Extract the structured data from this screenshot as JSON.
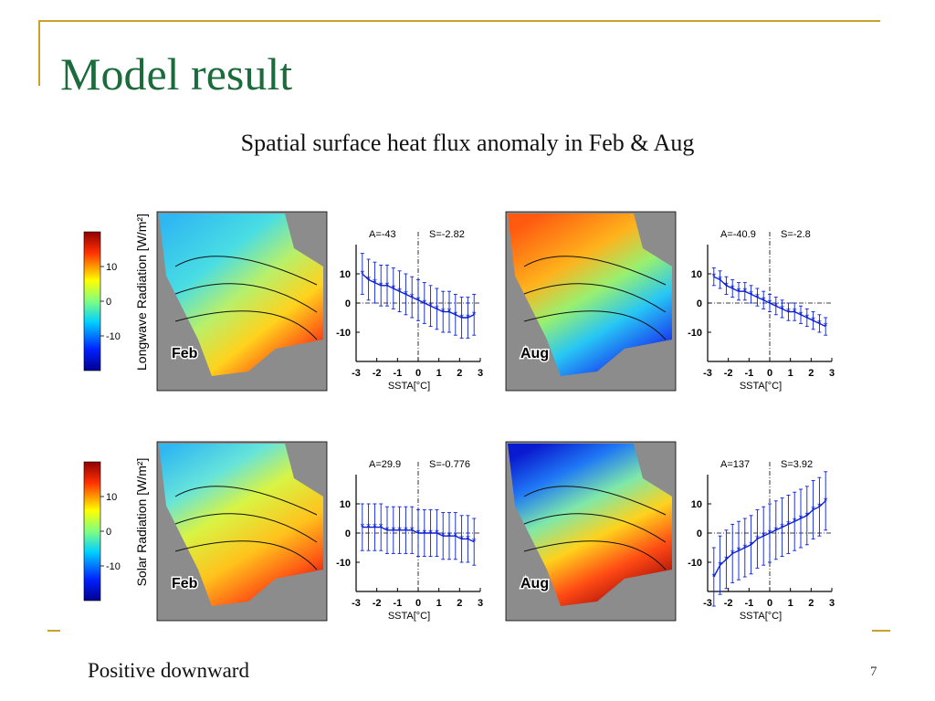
{
  "slide": {
    "title": "Model result",
    "subtitle": "Spatial surface heat flux anomaly in Feb & Aug",
    "footer_note": "Positive downward",
    "page_number": "7"
  },
  "colors": {
    "accent": "#c9a227",
    "title": "#1c6b3c",
    "plot_line": "#0a1fd6"
  },
  "rows": [
    {
      "ylabel": "Longwave Radiation [W/m²]",
      "colorbar_ticks": [
        "10",
        "0",
        "-10"
      ],
      "maps": [
        {
          "label": "Feb",
          "palette": "feb-lw"
        },
        {
          "label": "Aug",
          "palette": "aug-lw"
        }
      ]
    },
    {
      "ylabel": "Solar Radiation [W/m²]",
      "colorbar_ticks": [
        "10",
        "0",
        "-10"
      ],
      "maps": [
        {
          "label": "Feb",
          "palette": "feb-sw"
        },
        {
          "label": "Aug",
          "palette": "aug-sw"
        }
      ]
    }
  ],
  "chart_data": [
    {
      "type": "scatter",
      "row": 0,
      "col": 0,
      "A_label": "A=-43",
      "S_label": "S=-2.82",
      "xlabel": "SSTA[°C]",
      "xlim": [
        -3,
        3
      ],
      "ylim": [
        -20,
        20
      ],
      "xticks": [
        "-3",
        "-2",
        "-1",
        "0",
        "1",
        "2",
        "3"
      ],
      "yticks": [
        "10",
        "0",
        "-10"
      ],
      "x": [
        -2.7,
        -2.4,
        -2.1,
        -1.8,
        -1.5,
        -1.2,
        -0.9,
        -0.6,
        -0.3,
        0,
        0.3,
        0.6,
        0.9,
        1.2,
        1.5,
        1.8,
        2.1,
        2.4,
        2.7
      ],
      "y": [
        10,
        8,
        7,
        6,
        6,
        5,
        4,
        3,
        2,
        1,
        0,
        -1,
        -2,
        -3,
        -3,
        -4,
        -5,
        -5,
        -4
      ],
      "err": [
        7,
        7,
        7,
        7,
        7,
        7,
        7,
        7,
        7,
        7,
        7,
        7,
        7,
        7,
        7,
        7,
        7,
        7,
        7
      ]
    },
    {
      "type": "scatter",
      "row": 0,
      "col": 1,
      "A_label": "A=-40.9",
      "S_label": "S=-2.8",
      "xlabel": "SSTA[°C]",
      "xlim": [
        -3,
        3
      ],
      "ylim": [
        -20,
        20
      ],
      "xticks": [
        "-3",
        "-2",
        "-1",
        "0",
        "1",
        "2",
        "3"
      ],
      "yticks": [
        "10",
        "0",
        "-10"
      ],
      "x": [
        -2.7,
        -2.4,
        -2.1,
        -1.8,
        -1.5,
        -1.2,
        -0.9,
        -0.6,
        -0.3,
        0,
        0.3,
        0.6,
        0.9,
        1.2,
        1.5,
        1.8,
        2.1,
        2.4,
        2.7
      ],
      "y": [
        9,
        8,
        6,
        5,
        4,
        4,
        3,
        2,
        1,
        0,
        -1,
        -2,
        -3,
        -3,
        -4,
        -5,
        -6,
        -7,
        -8
      ],
      "err": [
        3,
        3,
        3,
        3,
        3,
        3,
        3,
        3,
        3,
        3,
        3,
        3,
        3,
        3,
        3,
        3,
        3,
        3,
        3
      ]
    },
    {
      "type": "scatter",
      "row": 1,
      "col": 0,
      "A_label": "A=29.9",
      "S_label": "S=-0.776",
      "xlabel": "SSTA[°C]",
      "xlim": [
        -3,
        3
      ],
      "ylim": [
        -20,
        20
      ],
      "xticks": [
        "-3",
        "-2",
        "-1",
        "0",
        "1",
        "2",
        "3"
      ],
      "yticks": [
        "10",
        "0",
        "-10"
      ],
      "x": [
        -2.7,
        -2.4,
        -2.1,
        -1.8,
        -1.5,
        -1.2,
        -0.9,
        -0.6,
        -0.3,
        0,
        0.3,
        0.6,
        0.9,
        1.2,
        1.5,
        1.8,
        2.1,
        2.4,
        2.7
      ],
      "y": [
        2,
        2,
        2,
        2,
        1,
        1,
        1,
        1,
        1,
        0,
        0,
        0,
        0,
        -1,
        -1,
        -1,
        -2,
        -2,
        -3
      ],
      "err": [
        8,
        8,
        8,
        8,
        8,
        8,
        8,
        8,
        8,
        8,
        8,
        8,
        8,
        8,
        8,
        8,
        8,
        8,
        8
      ]
    },
    {
      "type": "scatter",
      "row": 1,
      "col": 1,
      "A_label": "A=137",
      "S_label": "S=3.92",
      "xlabel": "SSTA[°C]",
      "xlim": [
        -3,
        3
      ],
      "ylim": [
        -20,
        20
      ],
      "xticks": [
        "-3",
        "-2",
        "-1",
        "0",
        "1",
        "2",
        "3"
      ],
      "yticks": [
        "10",
        "0",
        "-10"
      ],
      "x": [
        -2.7,
        -2.4,
        -2.1,
        -1.8,
        -1.5,
        -1.2,
        -0.9,
        -0.6,
        -0.3,
        0,
        0.3,
        0.6,
        0.9,
        1.2,
        1.5,
        1.8,
        2.1,
        2.4,
        2.7
      ],
      "y": [
        -15,
        -11,
        -9,
        -7,
        -6,
        -5,
        -4,
        -2,
        -1,
        0,
        1,
        2,
        3,
        4,
        5,
        6,
        8,
        9,
        11
      ],
      "err": [
        10,
        10,
        10,
        10,
        10,
        10,
        10,
        10,
        10,
        10,
        10,
        10,
        10,
        10,
        10,
        10,
        10,
        10,
        10
      ]
    }
  ]
}
